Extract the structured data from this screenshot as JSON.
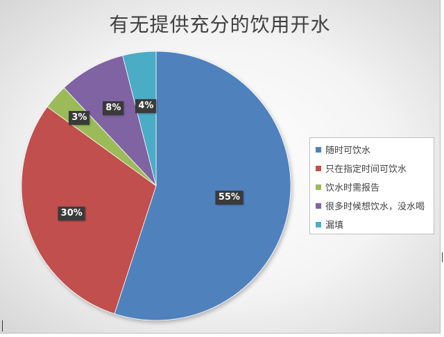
{
  "chart_data": {
    "type": "pie",
    "title": "有无提供充分的饮用开水",
    "categories": [
      "随时可饮水",
      "只在指定时间可饮水",
      "饮水时需报告",
      "很多时候想饮水，没水喝",
      "漏填"
    ],
    "values": [
      55,
      30,
      3,
      8,
      4
    ],
    "value_labels": [
      "55%",
      "30%",
      "3%",
      "8%",
      "4%"
    ],
    "colors": [
      "#4F81BD",
      "#C0504D",
      "#9BBB59",
      "#8064A2",
      "#4BACC6"
    ],
    "start_angle": "12 o'clock",
    "direction": "clockwise",
    "legend_position": "right"
  }
}
